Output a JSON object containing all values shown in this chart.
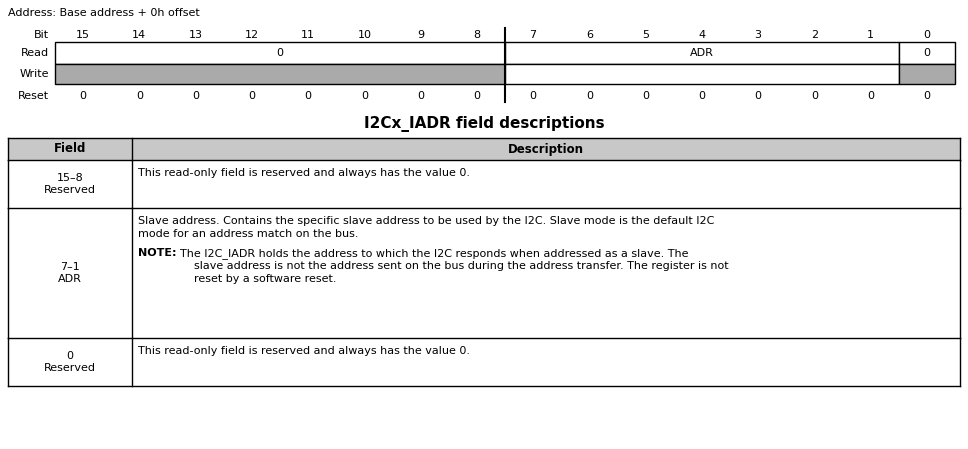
{
  "title_address": "Address: Base address + 0h offset",
  "bit_numbers": [
    15,
    14,
    13,
    12,
    11,
    10,
    9,
    8,
    7,
    6,
    5,
    4,
    3,
    2,
    1,
    0
  ],
  "reset_values": [
    0,
    0,
    0,
    0,
    0,
    0,
    0,
    0,
    0,
    0,
    0,
    0,
    0,
    0,
    0,
    0
  ],
  "gray_color": "#aaaaaa",
  "white_color": "#ffffff",
  "black_color": "#000000",
  "border_color": "#000000",
  "header_bg": "#c8c8c8",
  "table_title": "I2Cx_IADR field descriptions",
  "table_col_ratio": 0.13,
  "font_size": 8.0,
  "note_indent": 58,
  "note_text_indent": 82
}
